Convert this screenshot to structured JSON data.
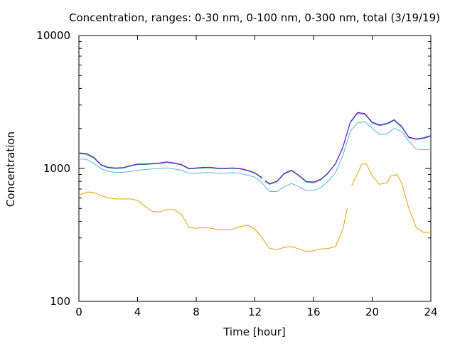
{
  "chart_data": {
    "type": "line",
    "title": "Concentration, ranges: 0-30 nm, 0-100 nm, 0-300 nm, total (3/19/19)",
    "xlabel": "Time [hour]",
    "ylabel": "Concentration",
    "xlim": [
      0,
      24
    ],
    "ylim": [
      100,
      10000
    ],
    "yscale": "log",
    "grid": false,
    "x_ticks": [
      0,
      4,
      8,
      12,
      16,
      20,
      24
    ],
    "y_ticks": [
      100,
      1000,
      10000
    ],
    "x_tick_labels": [
      "0",
      "4",
      "8",
      "12",
      "16",
      "20",
      "24"
    ],
    "y_tick_labels": [
      "100",
      "1000",
      "10000"
    ],
    "series": [
      {
        "color": "#e69f00",
        "segments": [
          [
            [
              0,
              630
            ],
            [
              0.3,
              650
            ],
            [
              0.7,
              665
            ],
            [
              1.0,
              660
            ],
            [
              1.5,
              625
            ],
            [
              2.0,
              600
            ],
            [
              2.5,
              590
            ],
            [
              3.0,
              590
            ],
            [
              3.5,
              590
            ],
            [
              4.0,
              575
            ],
            [
              4.5,
              520
            ],
            [
              5.0,
              475
            ],
            [
              5.5,
              470
            ],
            [
              6.0,
              490
            ],
            [
              6.5,
              490
            ],
            [
              7.0,
              450
            ],
            [
              7.5,
              360
            ],
            [
              8.0,
              355
            ],
            [
              8.5,
              358
            ],
            [
              9.0,
              355
            ],
            [
              9.5,
              345
            ],
            [
              10.0,
              345
            ],
            [
              10.5,
              350
            ],
            [
              11.0,
              365
            ],
            [
              11.5,
              375
            ],
            [
              12.0,
              350
            ],
            [
              12.5,
              300
            ],
            [
              13.0,
              250
            ],
            [
              13.5,
              245
            ],
            [
              14.0,
              255
            ],
            [
              14.5,
              258
            ],
            [
              15.0,
              248
            ],
            [
              15.5,
              237
            ],
            [
              16.0,
              240
            ],
            [
              16.5,
              248
            ],
            [
              17.0,
              250
            ],
            [
              17.5,
              258
            ],
            [
              18.0,
              350
            ],
            [
              18.3,
              500
            ]
          ],
          [
            [
              18.6,
              740
            ],
            [
              19.0,
              920
            ],
            [
              19.3,
              1080
            ],
            [
              19.6,
              1080
            ],
            [
              20.0,
              880
            ],
            [
              20.5,
              760
            ],
            [
              21.0,
              780
            ],
            [
              21.3,
              880
            ],
            [
              21.7,
              900
            ],
            [
              22.0,
              780
            ],
            [
              22.5,
              500
            ],
            [
              23.0,
              360
            ],
            [
              23.5,
              330
            ],
            [
              24.0,
              330
            ]
          ]
        ]
      },
      {
        "color": "#56b4e9",
        "segments": [
          [
            [
              0,
              1180
            ],
            [
              0.5,
              1170
            ],
            [
              1.0,
              1100
            ],
            [
              1.5,
              1000
            ],
            [
              2.0,
              950
            ],
            [
              2.5,
              935
            ],
            [
              3.0,
              935
            ],
            [
              3.5,
              950
            ],
            [
              4.0,
              970
            ],
            [
              4.5,
              980
            ],
            [
              5.0,
              990
            ],
            [
              5.5,
              1000
            ],
            [
              6.0,
              1010
            ],
            [
              6.5,
              990
            ],
            [
              7.0,
              970
            ],
            [
              7.5,
              920
            ],
            [
              8.0,
              920
            ],
            [
              8.5,
              930
            ],
            [
              9.0,
              930
            ],
            [
              9.5,
              920
            ],
            [
              10.0,
              920
            ],
            [
              10.5,
              930
            ],
            [
              11.0,
              920
            ],
            [
              11.5,
              890
            ],
            [
              12.0,
              860
            ],
            [
              12.5,
              780
            ],
            [
              13.0,
              670
            ],
            [
              13.5,
              670
            ],
            [
              14.0,
              730
            ],
            [
              14.5,
              770
            ],
            [
              15.0,
              730
            ],
            [
              15.5,
              680
            ],
            [
              16.0,
              680
            ],
            [
              16.5,
              720
            ],
            [
              17.0,
              800
            ],
            [
              17.5,
              930
            ],
            [
              18.0,
              1250
            ],
            [
              18.5,
              1900
            ],
            [
              19.0,
              2200
            ],
            [
              19.5,
              2250
            ],
            [
              20.0,
              2000
            ],
            [
              20.5,
              1800
            ],
            [
              21.0,
              1820
            ],
            [
              21.5,
              2000
            ],
            [
              22.0,
              1900
            ],
            [
              22.5,
              1600
            ],
            [
              23.0,
              1400
            ],
            [
              23.5,
              1380
            ],
            [
              24.0,
              1400
            ]
          ]
        ]
      },
      {
        "color": "#009e73",
        "segments": [
          [
            [
              0,
              1290
            ],
            [
              0.5,
              1280
            ],
            [
              1.0,
              1200
            ],
            [
              1.5,
              1060
            ],
            [
              2.0,
              1010
            ],
            [
              2.5,
              1000
            ],
            [
              3.0,
              1005
            ],
            [
              3.5,
              1040
            ],
            [
              4.0,
              1070
            ],
            [
              4.5,
              1070
            ],
            [
              5.0,
              1080
            ],
            [
              5.5,
              1090
            ],
            [
              6.0,
              1110
            ],
            [
              6.5,
              1090
            ],
            [
              7.0,
              1060
            ],
            [
              7.5,
              990
            ],
            [
              8.0,
              1000
            ],
            [
              8.5,
              1010
            ],
            [
              9.0,
              1010
            ],
            [
              9.5,
              995
            ],
            [
              10.0,
              995
            ],
            [
              10.5,
              1000
            ],
            [
              11.0,
              990
            ],
            [
              11.5,
              960
            ],
            [
              12.0,
              920
            ],
            [
              12.5,
              840
            ]
          ],
          [
            [
              12.7,
              800
            ],
            [
              13.0,
              760
            ],
            [
              13.5,
              790
            ],
            [
              14.0,
              910
            ],
            [
              14.5,
              960
            ],
            [
              15.0,
              880
            ],
            [
              15.5,
              790
            ],
            [
              16.0,
              780
            ],
            [
              16.5,
              820
            ],
            [
              17.0,
              920
            ],
            [
              17.5,
              1080
            ],
            [
              18.0,
              1430
            ],
            [
              18.5,
              2200
            ],
            [
              19.0,
              2600
            ],
            [
              19.5,
              2550
            ],
            [
              20.0,
              2200
            ],
            [
              20.5,
              2100
            ],
            [
              21.0,
              2150
            ],
            [
              21.5,
              2300
            ],
            [
              22.0,
              2050
            ],
            [
              22.5,
              1700
            ],
            [
              23.0,
              1650
            ],
            [
              23.5,
              1680
            ],
            [
              24.0,
              1750
            ]
          ]
        ]
      },
      {
        "color": "#9400d3",
        "segments": [
          [
            [
              0,
              1310
            ],
            [
              0.5,
              1300
            ],
            [
              1.0,
              1220
            ],
            [
              1.5,
              1070
            ],
            [
              2.0,
              1020
            ],
            [
              2.5,
              1010
            ],
            [
              3.0,
              1015
            ],
            [
              3.5,
              1050
            ],
            [
              4.0,
              1080
            ],
            [
              4.5,
              1080
            ],
            [
              5.0,
              1090
            ],
            [
              5.5,
              1100
            ],
            [
              6.0,
              1120
            ],
            [
              6.5,
              1100
            ],
            [
              7.0,
              1070
            ],
            [
              7.5,
              1000
            ],
            [
              8.0,
              1010
            ],
            [
              8.5,
              1020
            ],
            [
              9.0,
              1020
            ],
            [
              9.5,
              1005
            ],
            [
              10.0,
              1005
            ],
            [
              10.5,
              1010
            ],
            [
              11.0,
              1000
            ],
            [
              11.5,
              970
            ],
            [
              12.0,
              930
            ],
            [
              12.5,
              850
            ]
          ],
          [
            [
              12.7,
              810
            ],
            [
              13.0,
              770
            ],
            [
              13.5,
              800
            ],
            [
              14.0,
              920
            ],
            [
              14.5,
              970
            ],
            [
              15.0,
              890
            ],
            [
              15.5,
              800
            ],
            [
              16.0,
              790
            ],
            [
              16.5,
              830
            ],
            [
              17.0,
              930
            ],
            [
              17.5,
              1090
            ],
            [
              18.0,
              1450
            ],
            [
              18.5,
              2230
            ],
            [
              19.0,
              2640
            ],
            [
              19.5,
              2590
            ],
            [
              20.0,
              2230
            ],
            [
              20.5,
              2130
            ],
            [
              21.0,
              2180
            ],
            [
              21.5,
              2330
            ],
            [
              22.0,
              2080
            ],
            [
              22.5,
              1720
            ],
            [
              23.0,
              1670
            ],
            [
              23.5,
              1700
            ],
            [
              24.0,
              1770
            ]
          ]
        ]
      }
    ]
  }
}
